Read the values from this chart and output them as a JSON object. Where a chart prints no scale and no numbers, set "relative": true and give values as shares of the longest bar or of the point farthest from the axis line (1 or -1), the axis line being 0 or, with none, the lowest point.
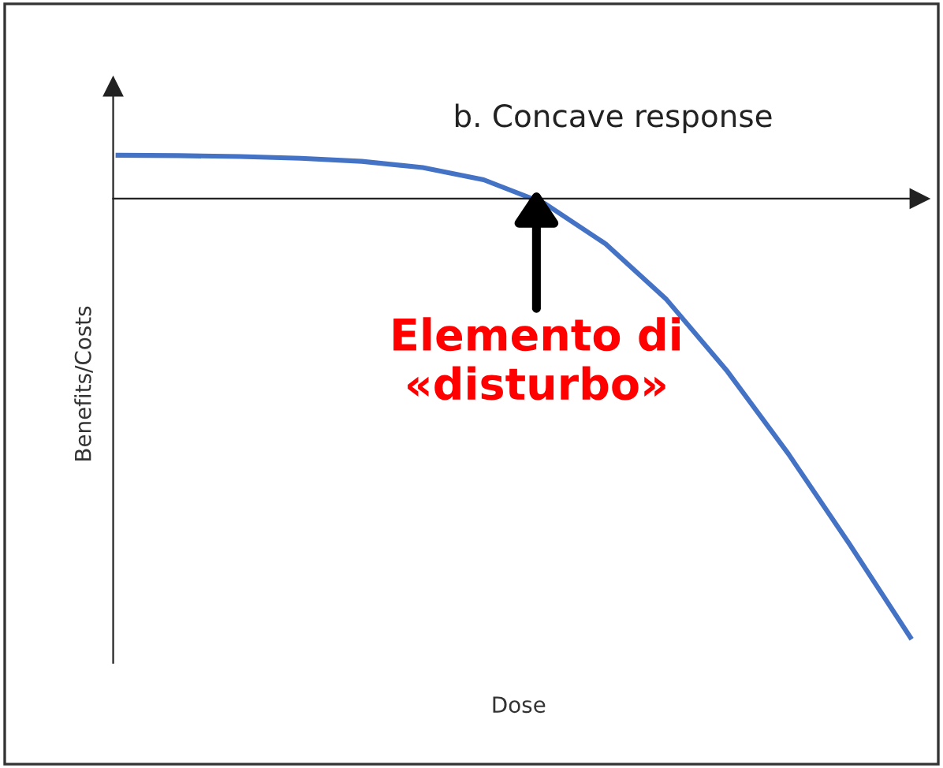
{
  "chart_data": {
    "type": "line",
    "title": "b. Concave response",
    "xlabel": "Dose",
    "ylabel": "Benefits/Costs",
    "relative": true,
    "tick_labels": false,
    "legend": false,
    "marker": "none",
    "line_style": "solid",
    "categories": [
      null,
      null,
      null,
      null,
      null,
      null,
      null,
      null,
      null,
      null,
      null,
      null,
      null,
      null
    ],
    "series": [
      {
        "color": "#4472c4",
        "values": [
          0.099,
          0.098,
          0.096,
          0.092,
          0.085,
          0.071,
          0.043,
          -0.011,
          -0.103,
          -0.23,
          -0.394,
          -0.582,
          -0.787,
          -1
        ]
      }
    ],
    "annotations": [
      "Elemento di\n«disturbo»"
    ]
  }
}
